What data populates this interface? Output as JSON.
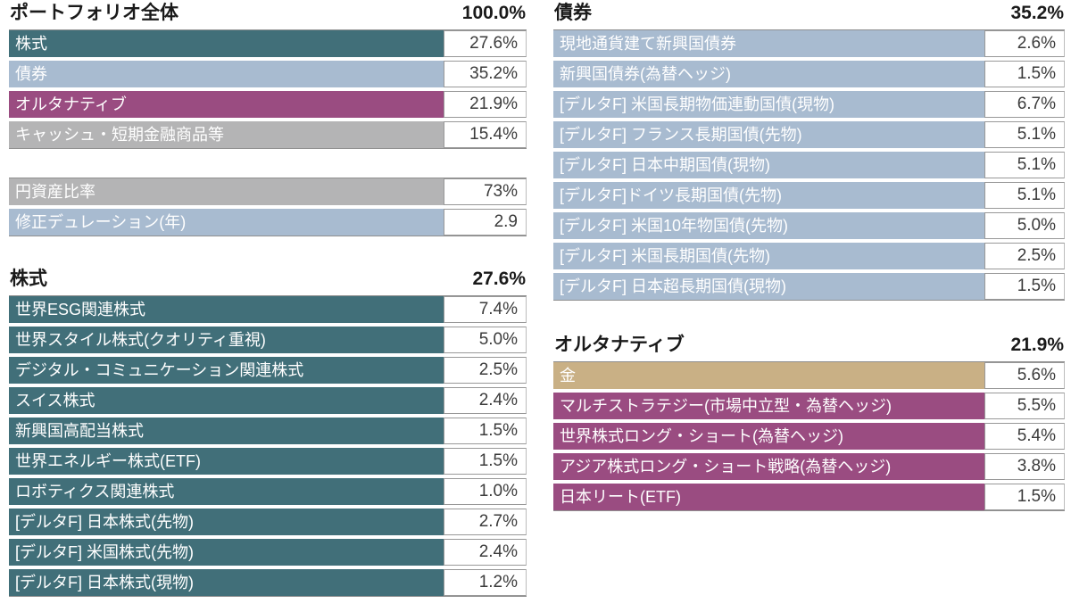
{
  "colors": {
    "teal": "#416f79",
    "blue": "#a8bbd0",
    "purple": "#9a4c81",
    "gray": "#b4b4b5",
    "gold": "#c9b085"
  },
  "sections": {
    "portfolio_overall": {
      "title": "ポートフォリオ全体",
      "total": "100.0%",
      "rows": [
        {
          "label": "株式",
          "value": "27.6%",
          "color": "teal"
        },
        {
          "label": "債券",
          "value": "35.2%",
          "color": "blue"
        },
        {
          "label": "オルタナティブ",
          "value": "21.9%",
          "color": "purple"
        },
        {
          "label": "キャッシュ・短期金融商品等",
          "value": "15.4%",
          "color": "gray"
        }
      ]
    },
    "metrics": {
      "rows": [
        {
          "label": "円資産比率",
          "value": "73%",
          "color": "gray"
        },
        {
          "label": "修正デュレーション(年)",
          "value": "2.9",
          "color": "blue"
        }
      ]
    },
    "equity": {
      "title": "株式",
      "total": "27.6%",
      "rows": [
        {
          "label": "世界ESG関連株式",
          "value": "7.4%",
          "color": "teal"
        },
        {
          "label": "世界スタイル株式(クオリティ重視)",
          "value": "5.0%",
          "color": "teal"
        },
        {
          "label": "デジタル・コミュニケーション関連株式",
          "value": "2.5%",
          "color": "teal"
        },
        {
          "label": "スイス株式",
          "value": "2.4%",
          "color": "teal"
        },
        {
          "label": "新興国高配当株式",
          "value": "1.5%",
          "color": "teal"
        },
        {
          "label": "世界エネルギー株式(ETF)",
          "value": "1.5%",
          "color": "teal"
        },
        {
          "label": "ロボティクス関連株式",
          "value": "1.0%",
          "color": "teal"
        },
        {
          "label": "[デルタF] 日本株式(先物)",
          "value": "2.7%",
          "color": "teal"
        },
        {
          "label": "[デルタF] 米国株式(先物)",
          "value": "2.4%",
          "color": "teal"
        },
        {
          "label": "[デルタF] 日本株式(現物)",
          "value": "1.2%",
          "color": "teal"
        }
      ]
    },
    "bond": {
      "title": "債券",
      "total": "35.2%",
      "rows": [
        {
          "label": "現地通貨建て新興国債券",
          "value": "2.6%",
          "color": "blue"
        },
        {
          "label": "新興国債券(為替ヘッジ)",
          "value": "1.5%",
          "color": "blue"
        },
        {
          "label": "[デルタF] 米国長期物価連動国債(現物)",
          "value": "6.7%",
          "color": "blue"
        },
        {
          "label": "[デルタF] フランス長期国債(先物)",
          "value": "5.1%",
          "color": "blue"
        },
        {
          "label": "[デルタF] 日本中期国債(現物)",
          "value": "5.1%",
          "color": "blue"
        },
        {
          "label": "[デルタF]ドイツ長期国債(先物)",
          "value": "5.1%",
          "color": "blue"
        },
        {
          "label": "[デルタF] 米国10年物国債(先物)",
          "value": "5.0%",
          "color": "blue"
        },
        {
          "label": "[デルタF] 米国長期国債(先物)",
          "value": "2.5%",
          "color": "blue"
        },
        {
          "label": "[デルタF] 日本超長期国債(現物)",
          "value": "1.5%",
          "color": "blue"
        }
      ]
    },
    "alternative": {
      "title": "オルタナティブ",
      "total": "21.9%",
      "rows": [
        {
          "label": "金",
          "value": "5.6%",
          "color": "gold"
        },
        {
          "label": "マルチストラテジー(市場中立型・為替ヘッジ)",
          "value": "5.5%",
          "color": "purple"
        },
        {
          "label": "世界株式ロング・ショート(為替ヘッジ)",
          "value": "5.4%",
          "color": "purple"
        },
        {
          "label": "アジア株式ロング・ショート戦略(為替ヘッジ)",
          "value": "3.8%",
          "color": "purple"
        },
        {
          "label": "日本リート(ETF)",
          "value": "1.5%",
          "color": "purple"
        }
      ]
    }
  }
}
